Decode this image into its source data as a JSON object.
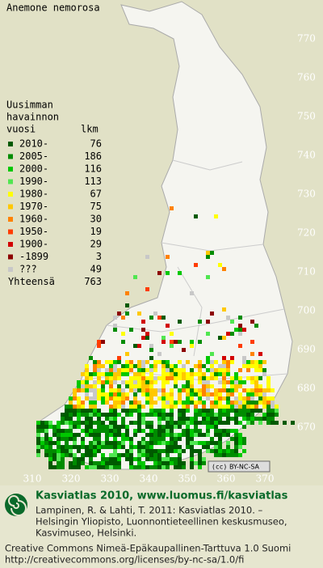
{
  "title": "Anemone nemorosa",
  "legend": {
    "heading": [
      "Uusimman",
      "havainnon"
    ],
    "col_year": "vuosi",
    "col_count": "lkm",
    "items": [
      {
        "label": "2010-",
        "count": 76,
        "color": "#005a00"
      },
      {
        "label": "2005-",
        "count": 186,
        "color": "#008c00"
      },
      {
        "label": "2000-",
        "count": 116,
        "color": "#00c800"
      },
      {
        "label": "1990-",
        "count": 113,
        "color": "#50e650"
      },
      {
        "label": "1980-",
        "count": 67,
        "color": "#ffff00"
      },
      {
        "label": "1970-",
        "count": 75,
        "color": "#ffc800"
      },
      {
        "label": "1960-",
        "count": 30,
        "color": "#ff8200"
      },
      {
        "label": "1950-",
        "count": 19,
        "color": "#ff3c00"
      },
      {
        "label": "1900-",
        "count": 29,
        "color": "#d20000"
      },
      {
        "label": "-1899",
        "count": 3,
        "color": "#8c0000"
      },
      {
        "label": "???",
        "count": 49,
        "color": "#c8c8c8"
      }
    ],
    "total_label": "Yhteensä",
    "total": 763
  },
  "grid": {
    "north": [
      770,
      760,
      750,
      740,
      730,
      720,
      710,
      700,
      690,
      680,
      670
    ],
    "east": [
      310,
      320,
      330,
      340,
      350,
      360,
      370
    ]
  },
  "badge": "BY-NC-SA",
  "footer": {
    "heading": "Kasviatlas 2010, www.luomus.fi/kasviatlas",
    "citation": [
      "Lampinen, R. & Lahti, T. 2011: Kasviatlas 2010. –",
      "Helsingin Yliopisto, Luonnontieteellinen keskusmuseo,",
      "Kasvimuseo, Helsinki."
    ],
    "license": [
      "Creative Commons Nimeä-Epäkaupallinen-Tarttuva 1.0 Suomi",
      "http://creativecommons.org/licenses/by-nc-sa/1.0/fi"
    ]
  }
}
